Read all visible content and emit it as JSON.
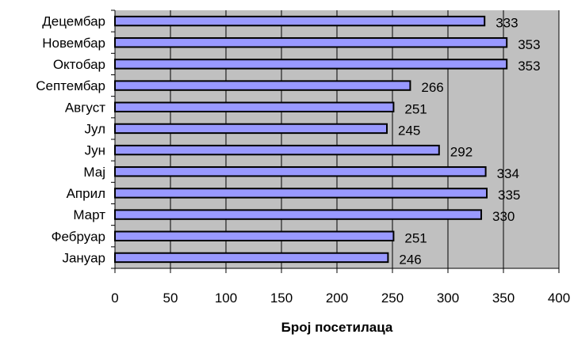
{
  "chart_data": {
    "type": "bar",
    "orientation": "horizontal",
    "categories": [
      "Децембар",
      "Новембар",
      "Октобар",
      "Септембар",
      "Август",
      "Јул",
      "Јун",
      "Мај",
      "Април",
      "Март",
      "Фебруар",
      "Јануар"
    ],
    "values": [
      333,
      353,
      353,
      266,
      251,
      245,
      292,
      334,
      335,
      330,
      251,
      246
    ],
    "xlabel": "Број посетилаца",
    "ylabel": "",
    "xlim": [
      0,
      400
    ],
    "xticks": [
      "0",
      "50",
      "100",
      "150",
      "200",
      "250",
      "300",
      "350",
      "400"
    ],
    "grid": true,
    "colors": {
      "bar_fill": "#9999ff",
      "bar_stroke": "#000000",
      "plot_background": "#c0c0c0",
      "gridline": "#000000"
    }
  }
}
